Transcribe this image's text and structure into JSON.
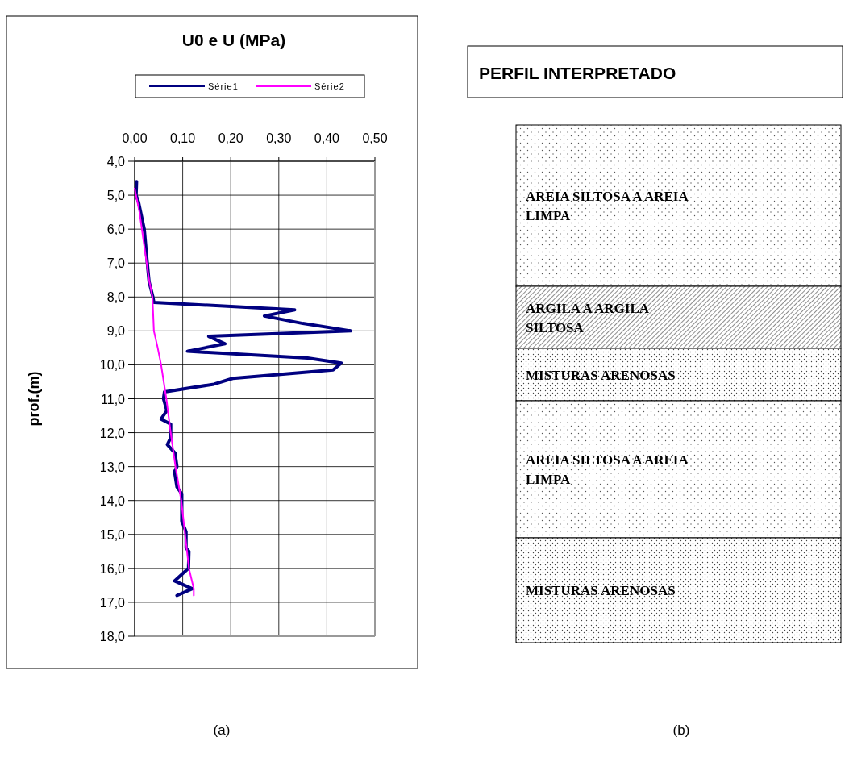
{
  "chart_data": [
    {
      "type": "line",
      "title": "U0 e U (MPa)",
      "ylabel": "prof.(m)",
      "xlim": [
        0,
        0.5
      ],
      "xticks": [
        {
          "value": 0,
          "label": "0,00"
        },
        {
          "value": 0.1,
          "label": "0,10"
        },
        {
          "value": 0.2,
          "label": "0,20"
        },
        {
          "value": 0.3,
          "label": "0,30"
        },
        {
          "value": 0.4,
          "label": "0,40"
        },
        {
          "value": 0.5,
          "label": "0,50"
        }
      ],
      "ylim": [
        18,
        4
      ],
      "yticks": [
        {
          "value": 4,
          "label": "4,0"
        },
        {
          "value": 5,
          "label": "5,0"
        },
        {
          "value": 6,
          "label": "6,0"
        },
        {
          "value": 7,
          "label": "7,0"
        },
        {
          "value": 8,
          "label": "8,0"
        },
        {
          "value": 9,
          "label": "9,0"
        },
        {
          "value": 10,
          "label": "10,0"
        },
        {
          "value": 11,
          "label": "11,0"
        },
        {
          "value": 12,
          "label": "12,0"
        },
        {
          "value": 13,
          "label": "13,0"
        },
        {
          "value": 14,
          "label": "14,0"
        },
        {
          "value": 15,
          "label": "15,0"
        },
        {
          "value": 16,
          "label": "16,0"
        },
        {
          "value": 17,
          "label": "17,0"
        },
        {
          "value": 18,
          "label": "18,0"
        }
      ],
      "grid": true,
      "legend": "top",
      "series": [
        {
          "name": "Série1",
          "color": "#000080",
          "x": [
            0.004,
            0.003,
            0.008,
            0.014,
            0.02,
            0.025,
            0.03,
            0.038,
            0.04,
            0.333,
            0.27,
            0.35,
            0.45,
            0.154,
            0.188,
            0.11,
            0.36,
            0.43,
            0.413,
            0.204,
            0.165,
            0.062,
            0.06,
            0.067,
            0.055,
            0.075,
            0.075,
            0.068,
            0.084,
            0.088,
            0.083,
            0.088,
            0.098,
            0.098,
            0.107,
            0.107,
            0.113,
            0.112,
            0.083,
            0.12,
            0.088
          ],
          "values": [
            4.6,
            5.0,
            5.2,
            5.6,
            6.0,
            6.8,
            7.55,
            8.0,
            8.16,
            8.38,
            8.56,
            8.78,
            9.0,
            9.16,
            9.38,
            9.6,
            9.8,
            9.95,
            10.15,
            10.4,
            10.57,
            10.8,
            11.0,
            11.35,
            11.6,
            11.75,
            12.15,
            12.35,
            12.6,
            13.0,
            13.15,
            13.6,
            13.8,
            14.6,
            14.92,
            15.4,
            15.5,
            16.0,
            16.37,
            16.6,
            16.8
          ]
        },
        {
          "name": "Série2",
          "color": "#ff00ff",
          "x": [
            0.0,
            0.01,
            0.02,
            0.03,
            0.037,
            0.04,
            0.048,
            0.055,
            0.066,
            0.075,
            0.085,
            0.097,
            0.105,
            0.113,
            0.123,
            0.123
          ],
          "values": [
            4.8,
            5.5,
            6.5,
            7.5,
            8.0,
            9.0,
            9.5,
            10.0,
            11.0,
            12.0,
            13.0,
            14.0,
            15.0,
            16.0,
            16.6,
            16.8
          ]
        }
      ],
      "annotations": [
        "(a)"
      ]
    },
    {
      "type": "other",
      "title": "PERFIL INTERPRETADO",
      "annotations": [
        "AREIA SILTOSA A AREIA LIMPA",
        "ARGILA A ARGILA SILTOSA",
        "MISTURAS ARENOSAS",
        "AREIA SILTOSA A AREIA LIMPA",
        "MISTURAS ARENOSAS",
        "(b)"
      ]
    }
  ]
}
